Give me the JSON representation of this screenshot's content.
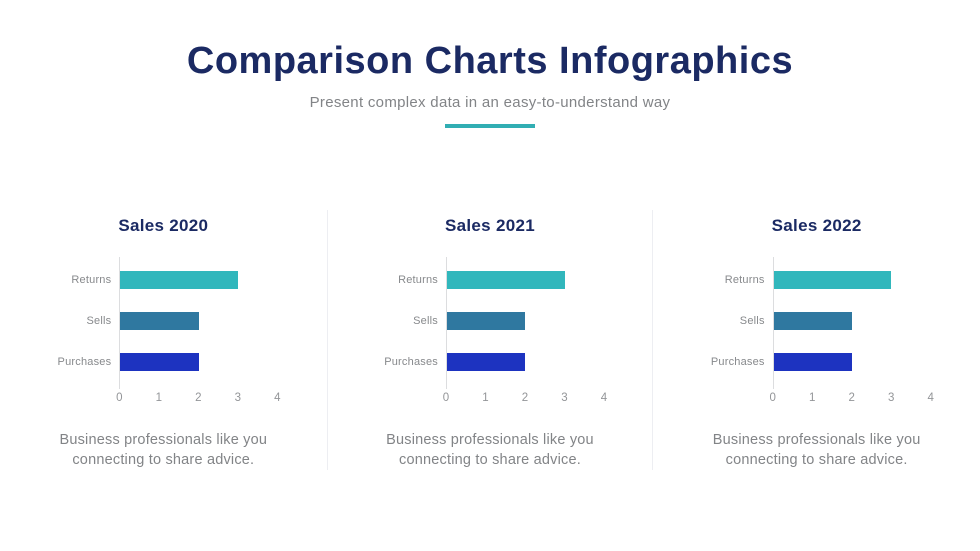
{
  "header": {
    "title": "Comparison Charts Infographics",
    "subtitle": "Present complex data in an easy-to-understand way"
  },
  "colors": {
    "title_navy": "#1b2a63",
    "text_gray": "#828487",
    "accent_teal": "#31aeb3",
    "axis_line": "#dcdddf",
    "panel_divider": "#edeef2",
    "bar_returns": "#31b7bc",
    "bar_sells": "#2f78a0",
    "bar_purchases": "#1d33c0"
  },
  "chart_data": [
    {
      "type": "bar",
      "orientation": "horizontal",
      "title": "Sales 2020",
      "categories": [
        "Returns",
        "Sells",
        "Purchases"
      ],
      "values": [
        3,
        2,
        2
      ],
      "bar_colors": [
        "#31b7bc",
        "#2f78a0",
        "#1d33c0"
      ],
      "x_ticks": [
        0,
        1,
        2,
        3,
        4
      ],
      "xlim": [
        0,
        4
      ],
      "grid": false,
      "legend": "none",
      "caption": "Business professionals like you connecting to share advice."
    },
    {
      "type": "bar",
      "orientation": "horizontal",
      "title": "Sales 2021",
      "categories": [
        "Returns",
        "Sells",
        "Purchases"
      ],
      "values": [
        3,
        2,
        2
      ],
      "bar_colors": [
        "#31b7bc",
        "#2f78a0",
        "#1d33c0"
      ],
      "x_ticks": [
        0,
        1,
        2,
        3,
        4
      ],
      "xlim": [
        0,
        4
      ],
      "grid": false,
      "legend": "none",
      "caption": "Business professionals like you connecting to share advice."
    },
    {
      "type": "bar",
      "orientation": "horizontal",
      "title": "Sales 2022",
      "categories": [
        "Returns",
        "Sells",
        "Purchases"
      ],
      "values": [
        3,
        2,
        2
      ],
      "bar_colors": [
        "#31b7bc",
        "#2f78a0",
        "#1d33c0"
      ],
      "x_ticks": [
        0,
        1,
        2,
        3,
        4
      ],
      "xlim": [
        0,
        4
      ],
      "grid": false,
      "legend": "none",
      "caption": "Business professionals like you connecting to share advice."
    }
  ]
}
